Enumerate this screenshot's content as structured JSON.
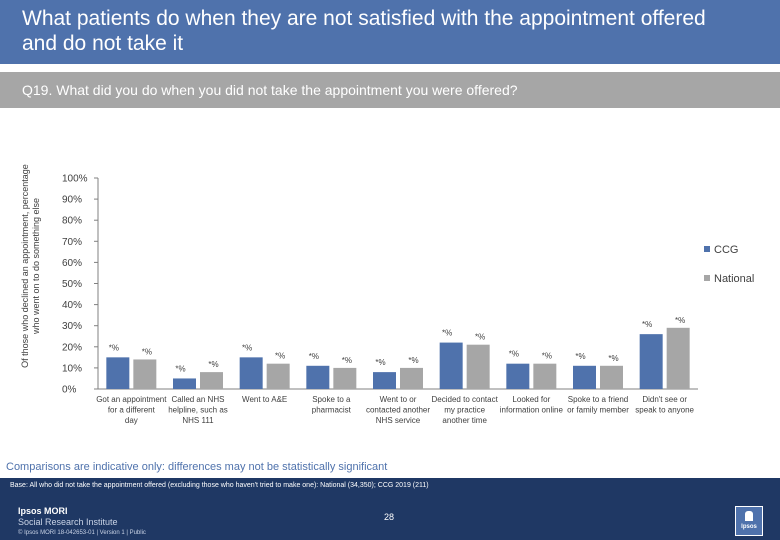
{
  "header": {
    "title": "What patients do when they are not satisfied with the appointment offered and do not take it",
    "question": "Q19. What did you do when you did not take the appointment you were offered?"
  },
  "chart_data": {
    "type": "bar",
    "ylabel": "Of those who declined an appointment, percentage who went on to do something else",
    "ylim": [
      0,
      100
    ],
    "yticks": [
      "0%",
      "10%",
      "20%",
      "30%",
      "40%",
      "50%",
      "60%",
      "70%",
      "80%",
      "90%",
      "100%"
    ],
    "legend_position": "right",
    "categories": [
      "Got an appointment for a different day",
      "Called an NHS helpline, such as NHS 111",
      "Went to A&E",
      "Spoke to a pharmacist",
      "Went to or contacted another NHS service",
      "Decided to contact my practice another time",
      "Looked for information online",
      "Spoke to a friend or family member",
      "Didn't see or speak to anyone"
    ],
    "series": [
      {
        "name": "CCG",
        "color": "#4f72ac",
        "values": [
          15,
          5,
          15,
          11,
          8,
          22,
          12,
          11,
          26
        ],
        "labels": [
          "*%",
          "*%",
          "*%",
          "*%",
          "*%",
          "*%",
          "*%",
          "*%",
          "*%"
        ]
      },
      {
        "name": "National",
        "color": "#a6a6a6",
        "values": [
          14,
          8,
          12,
          10,
          10,
          21,
          12,
          11,
          29
        ],
        "labels": [
          "*%",
          "*%",
          "*%",
          "*%",
          "*%",
          "*%",
          "*%",
          "*%",
          "*%"
        ]
      }
    ]
  },
  "footer": {
    "note": "Comparisons are indicative only: differences may not be statistically significant",
    "base": "Base: All who did not take the appointment offered (excluding those who haven't tried to make one): National (34,350); CCG 2019 (211)",
    "page_number": "28",
    "logo_name": "Ipsos MORI",
    "logo_sub": "Social Research Institute",
    "copyright": "© Ipsos MORI     18-042653-01 | Version 1 | Public",
    "badge": "Ipsos"
  }
}
